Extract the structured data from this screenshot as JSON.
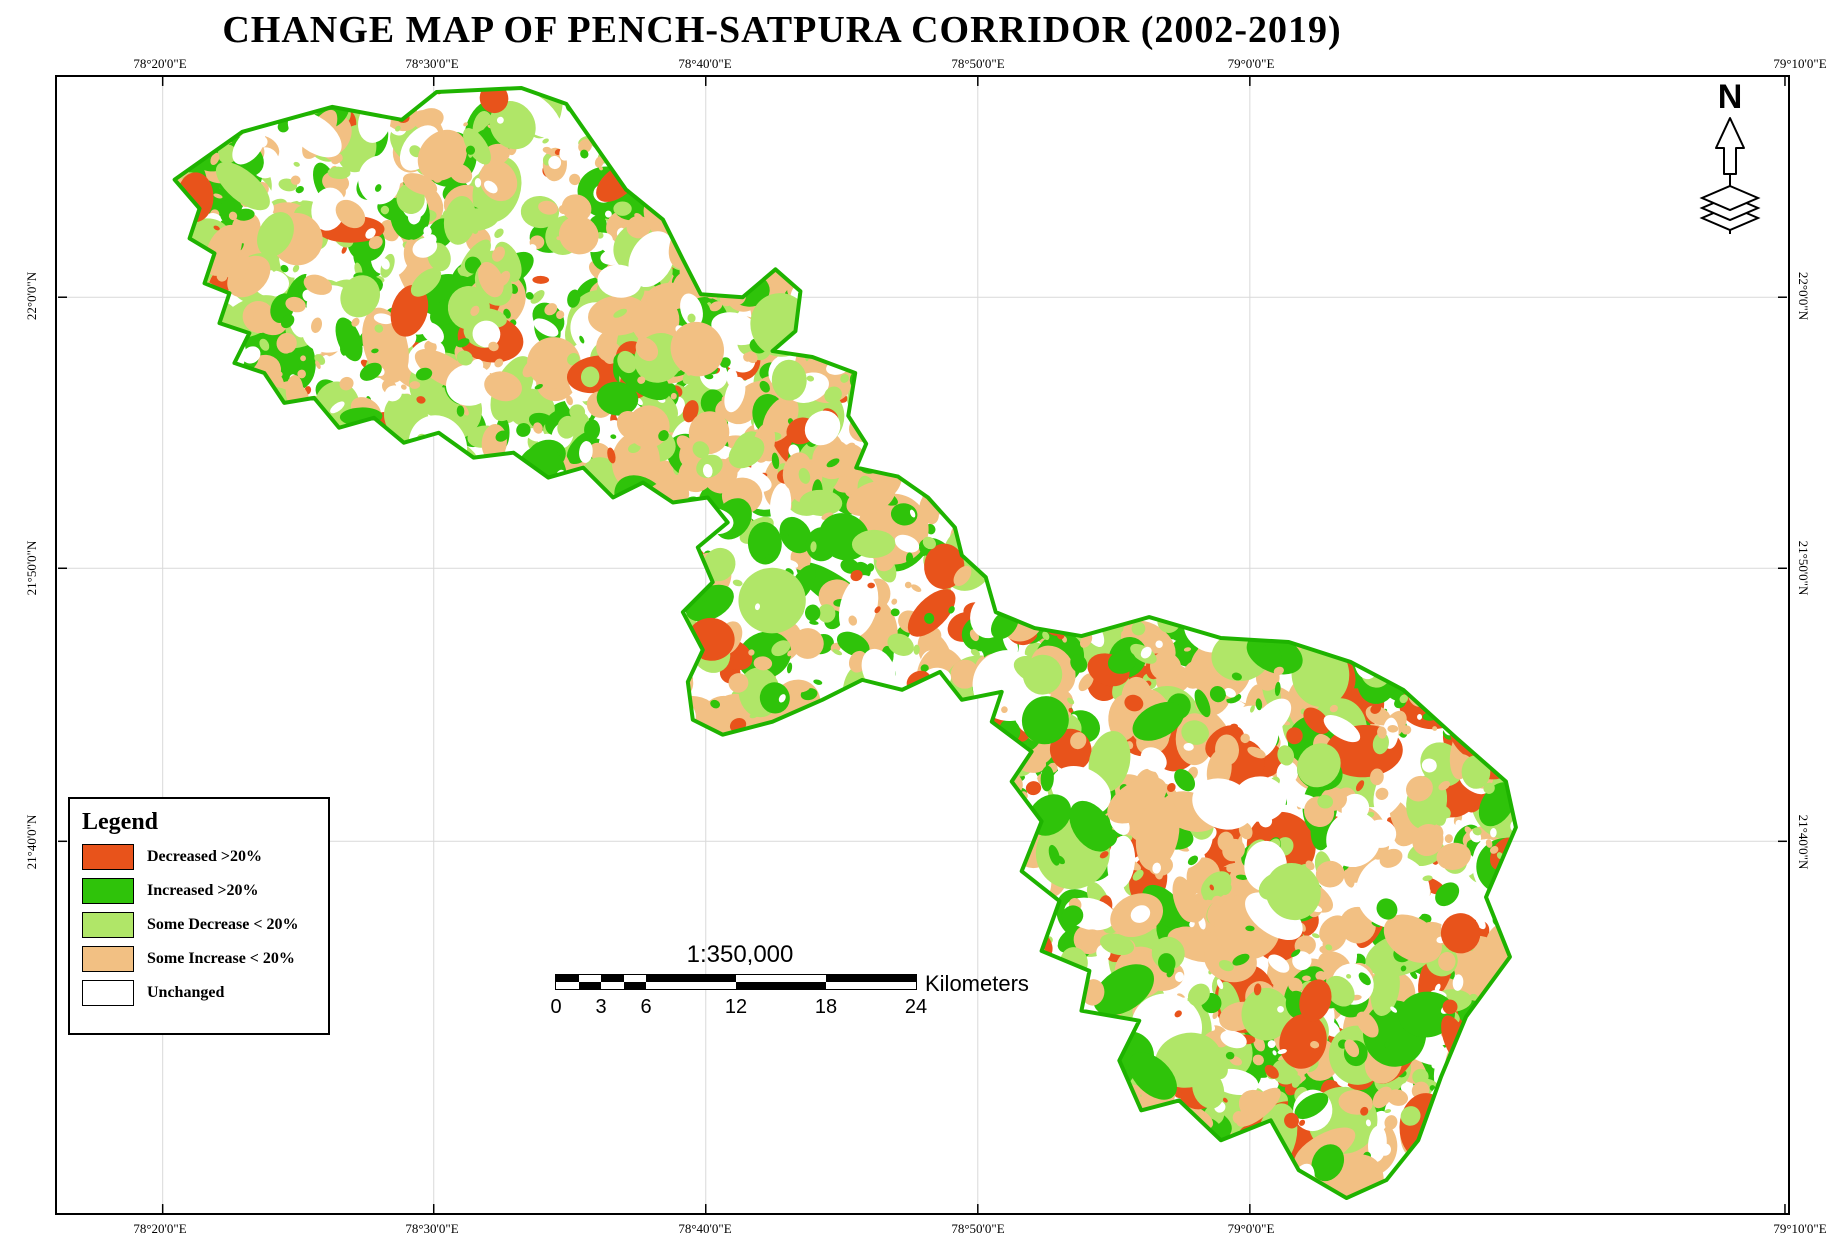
{
  "title": "CHANGE MAP OF PENCH-SATPURA CORRIDOR (2002-2019)",
  "north_label": "N",
  "coords": {
    "longitudes": [
      "78°20'0\"E",
      "78°30'0\"E",
      "78°40'0\"E",
      "78°50'0\"E",
      "79°0'0\"E",
      "79°10'0\"E"
    ],
    "latitudes": [
      "22°0'0\"N",
      "21°50'0\"N",
      "21°40'0\"N"
    ]
  },
  "legend": {
    "title": "Legend",
    "items": [
      {
        "label": "Decreased >20%",
        "color": "#E8531B"
      },
      {
        "label": "Increased >20%",
        "color": "#2FC30A"
      },
      {
        "label": "Some Decrease < 20%",
        "color": "#B0E668"
      },
      {
        "label": "Some Increase < 20%",
        "color": "#F2C083"
      },
      {
        "label": "Unchanged",
        "color": "#FFFFFF"
      }
    ]
  },
  "scale": {
    "ratio": "1:350,000",
    "ticks": [
      "0",
      "3",
      "6",
      "12",
      "18",
      "24"
    ],
    "unit": "Kilometers"
  },
  "map": {
    "outline_color": "#1EB300",
    "gridline_color": "#D9D9D9",
    "background": "#FFFFFF"
  }
}
